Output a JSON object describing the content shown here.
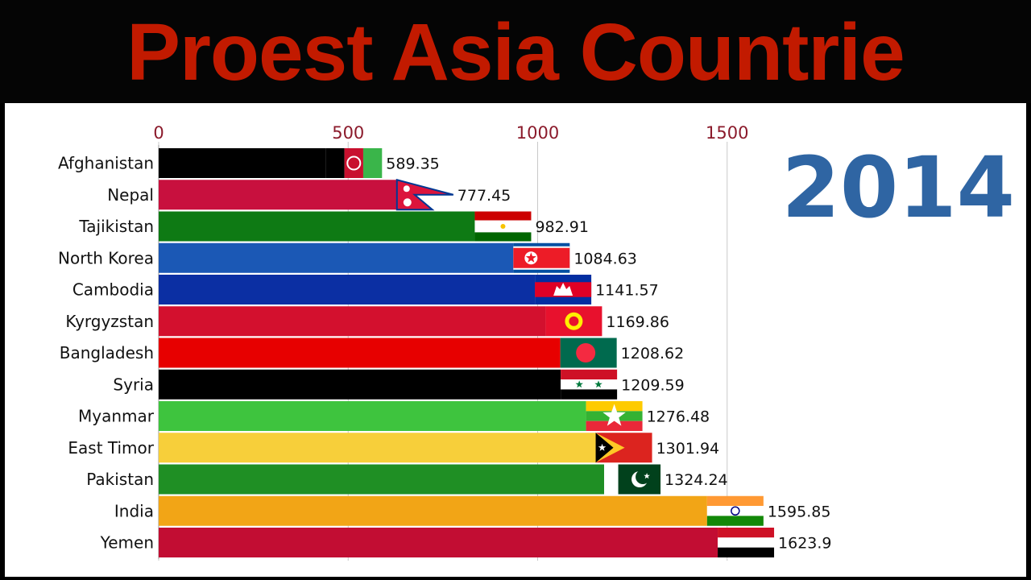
{
  "banner": {
    "title": "Proest Asia Countrie"
  },
  "year": "2014",
  "chart_data": {
    "type": "bar",
    "orientation": "horizontal",
    "title": "",
    "xlim": [
      0,
      1700
    ],
    "x_ticks": [
      0,
      500,
      1000,
      1500
    ],
    "categories": [
      "Afghanistan",
      "Nepal",
      "Tajikistan",
      "North Korea",
      "Cambodia",
      "Kyrgyzstan",
      "Bangladesh",
      "Syria",
      "Myanmar",
      "East Timor",
      "Pakistan",
      "India",
      "Yemen"
    ],
    "values": [
      589.35,
      777.45,
      982.91,
      1084.63,
      1141.57,
      1169.86,
      1208.62,
      1209.59,
      1276.48,
      1301.94,
      1324.24,
      1595.85,
      1623.9
    ],
    "value_labels": [
      "589.35",
      "777.45",
      "982.91",
      "1084.63",
      "1141.57",
      "1169.86",
      "1208.62",
      "1209.59",
      "1276.48",
      "1301.94",
      "1324.24",
      "1595.85",
      "1623.9"
    ],
    "bar_colors": [
      "#000000",
      "#c8103e",
      "#0e7a14",
      "#1b58b5",
      "#0b2fa3",
      "#d3102e",
      "#e70000",
      "#000000",
      "#3ec43e",
      "#f7cf3a",
      "#1f8f24",
      "#f2a516",
      "#c20d33"
    ],
    "flags": [
      "afghanistan-flag",
      "nepal-flag",
      "tajikistan-flag",
      "north-korea-flag",
      "cambodia-flag",
      "kyrgyzstan-flag",
      "bangladesh-flag",
      "syria-flag",
      "myanmar-flag",
      "east-timor-flag",
      "pakistan-flag",
      "india-flag",
      "yemen-flag"
    ],
    "grid": true
  }
}
